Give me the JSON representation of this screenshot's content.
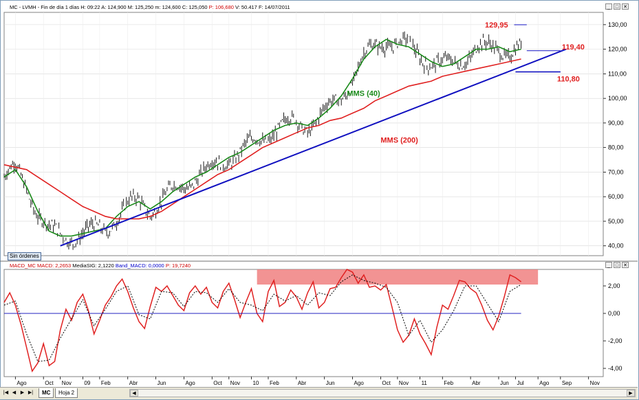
{
  "price_panel": {
    "title_parts": [
      {
        "text": "MC - LVMH - Fin de día 1 días",
        "color": "#000000"
      },
      {
        "text": "H: 09:22",
        "color": "#000000"
      },
      {
        "text": "A: 124,900",
        "color": "#000000"
      },
      {
        "text": "M: 125,250",
        "color": "#000000"
      },
      {
        "text": "m: 124,600",
        "color": "#000000"
      },
      {
        "text": "C: 125,050",
        "color": "#000000"
      },
      {
        "text": "P: 106,680",
        "color": "#d00000"
      },
      {
        "text": "V: 50.417",
        "color": "#000000"
      },
      {
        "text": "F: 14/07/2011",
        "color": "#000000"
      }
    ],
    "status_badge": "Sin órdenes"
  },
  "macd_panel": {
    "title_parts": [
      {
        "text": "MACD_MC",
        "color": "#d00000"
      },
      {
        "text": "MACD: 2,2653",
        "color": "#d00000"
      },
      {
        "text": "MediaSIG: 2,1220",
        "color": "#000000"
      },
      {
        "text": "Band_MACD: 0,0000",
        "color": "#0000cc"
      },
      {
        "text": "P: 19,7240",
        "color": "#d00000"
      }
    ]
  },
  "window_controls": {
    "minimize": "_",
    "maximize": "□",
    "close": "✕"
  },
  "tabs": [
    {
      "label": "MC",
      "active": true
    },
    {
      "label": "Hoja 2",
      "active": false
    }
  ],
  "nav_icons": [
    "first-icon",
    "prev-icon",
    "next-icon",
    "last-icon"
  ],
  "chart_data": [
    {
      "type": "line",
      "y_ticks": [
        "130,00",
        "120,00",
        "110,00",
        "100,00",
        "90,00",
        "80,00",
        "70,00",
        "60,00",
        "50,00",
        "40,00"
      ],
      "y_tick_values": [
        130,
        120,
        110,
        100,
        90,
        80,
        70,
        60,
        50,
        40
      ],
      "ylim": [
        36,
        135
      ],
      "x_ticks": [
        "Ago",
        "Oct",
        "Nov",
        "09",
        "Feb",
        "Abr",
        "Jun",
        "Ago",
        "Oct",
        "Nov",
        "10",
        "Feb",
        "Abr",
        "Jun",
        "Ago",
        "Oct",
        "Nov",
        "11",
        "Feb",
        "Abr",
        "Jun",
        "Jul",
        "Ago",
        "Sep",
        "Nov"
      ],
      "x_index_range": [
        0,
        100
      ],
      "x_tick_index": [
        2,
        7,
        10,
        14,
        17,
        22,
        27,
        32,
        37,
        40,
        44,
        47,
        52,
        57,
        62,
        67,
        70,
        74,
        78,
        83,
        88,
        91,
        95,
        99,
        104
      ],
      "grid": true,
      "series": [
        {
          "name": "MMS (40)",
          "color": "#1a8a1a",
          "x": [
            0,
            2,
            4,
            6,
            8,
            10,
            12,
            14,
            16,
            18,
            20,
            22,
            24,
            26,
            28,
            30,
            32,
            34,
            36,
            38,
            40,
            42,
            44,
            46,
            48,
            50,
            52,
            54,
            56,
            58,
            60,
            62,
            64,
            66,
            68,
            70,
            72,
            74,
            76,
            78,
            80,
            82,
            84,
            86,
            88,
            90,
            92
          ],
          "values": [
            68,
            71,
            64,
            54,
            46,
            44,
            44,
            45,
            46,
            47,
            52,
            56,
            58,
            55,
            58,
            62,
            65,
            68,
            70,
            73,
            76,
            78,
            81,
            84,
            87,
            89,
            90,
            89,
            92,
            96,
            101,
            108,
            116,
            121,
            124,
            122,
            121,
            118,
            115,
            113,
            114,
            117,
            120,
            120,
            121,
            119,
            120
          ]
        },
        {
          "name": "MMS (200)",
          "color": "#e02020",
          "x": [
            0,
            2,
            4,
            6,
            8,
            10,
            12,
            14,
            16,
            18,
            20,
            22,
            24,
            26,
            28,
            30,
            32,
            34,
            36,
            38,
            40,
            42,
            44,
            46,
            48,
            50,
            52,
            54,
            56,
            58,
            60,
            62,
            64,
            66,
            68,
            70,
            72,
            74,
            76,
            78,
            80,
            82,
            84,
            86,
            88,
            90,
            92
          ],
          "values": [
            73,
            72,
            71,
            68,
            65,
            62,
            59,
            56,
            54,
            52,
            51,
            51,
            51,
            52,
            54,
            57,
            60,
            63,
            66,
            69,
            71,
            74,
            77,
            80,
            82,
            84,
            86,
            88,
            89,
            91,
            92,
            94,
            96,
            99,
            101,
            103,
            105,
            106,
            107,
            109,
            110,
            111,
            112,
            113,
            114,
            115,
            116
          ]
        },
        {
          "name": "",
          "color": "#1010c0",
          "x": [
            10,
            100
          ],
          "values": [
            40,
            120
          ]
        }
      ],
      "annotations": [
        {
          "text": "129,95",
          "color": "#e02020"
        },
        {
          "text": "119,40",
          "color": "#e02020"
        },
        {
          "text": "110,80",
          "color": "#e02020"
        },
        {
          "text": "MMS (40)",
          "color": "#1a8a1a"
        },
        {
          "text": "MMS (200)",
          "color": "#e02020"
        }
      ],
      "levels": [
        129.95,
        119.4,
        110.8
      ]
    },
    {
      "type": "line",
      "y_ticks": [
        "2,00",
        "0,00",
        "-2,00",
        "-4,00"
      ],
      "y_tick_values": [
        2,
        0,
        -2,
        -4
      ],
      "ylim": [
        -4.6,
        3.2
      ],
      "grid": false,
      "zero_line_color": "#2020c0",
      "highlight_band": {
        "x": [
          45,
          95
        ],
        "y": [
          2.1,
          3.2
        ],
        "color": "#f08080"
      },
      "series": [
        {
          "name": "MACD",
          "color": "#e02020",
          "x": [
            0,
            1,
            2,
            3,
            4,
            5,
            6,
            7,
            8,
            9,
            10,
            11,
            12,
            13,
            14,
            15,
            16,
            17,
            18,
            19,
            20,
            21,
            22,
            23,
            24,
            25,
            26,
            27,
            28,
            29,
            30,
            31,
            32,
            33,
            34,
            35,
            36,
            37,
            38,
            39,
            40,
            41,
            42,
            43,
            44,
            45,
            46,
            47,
            48,
            49,
            50,
            51,
            52,
            53,
            54,
            55,
            56,
            57,
            58,
            59,
            60,
            61,
            62,
            63,
            64,
            65,
            66,
            67,
            68,
            69,
            70,
            71,
            72,
            73,
            74,
            75,
            76,
            77,
            78,
            79,
            80,
            81,
            82,
            83,
            84,
            85,
            86,
            87,
            88,
            89,
            90,
            91,
            92
          ],
          "values": [
            0.8,
            1.5,
            0.6,
            -0.8,
            -2.5,
            -4.2,
            -3.6,
            -2.2,
            -3.8,
            -3.5,
            -1.2,
            0.3,
            -0.5,
            0.8,
            1.4,
            0.2,
            -1.5,
            -0.5,
            0.6,
            1.2,
            2.0,
            2.5,
            1.6,
            0.4,
            -0.6,
            -1.1,
            0.5,
            1.9,
            1.6,
            2.0,
            1.3,
            0.6,
            0.2,
            1.5,
            2.0,
            1.4,
            1.9,
            0.8,
            0.4,
            1.6,
            2.2,
            1.0,
            -0.3,
            0.8,
            1.8,
            0.0,
            -0.6,
            1.6,
            2.4,
            0.5,
            0.8,
            1.7,
            1.2,
            0.3,
            1.5,
            2.3,
            0.4,
            0.8,
            1.8,
            1.9,
            2.6,
            3.2,
            3.0,
            2.2,
            2.8,
            1.9,
            2.0,
            1.7,
            2.1,
            0.5,
            -1.2,
            -2.1,
            -1.6,
            -0.4,
            -1.5,
            -2.2,
            -3.0,
            -1.0,
            0.6,
            0.3,
            1.3,
            2.4,
            2.3,
            1.8,
            1.5,
            0.6,
            -0.5,
            -1.2,
            -0.2,
            1.2,
            2.8,
            2.6,
            2.3
          ]
        },
        {
          "name": "MediaSIG",
          "color": "#000000",
          "x": [
            0,
            2,
            4,
            6,
            8,
            10,
            12,
            14,
            16,
            18,
            20,
            22,
            24,
            26,
            28,
            30,
            32,
            34,
            36,
            38,
            40,
            42,
            44,
            46,
            48,
            50,
            52,
            54,
            56,
            58,
            60,
            62,
            64,
            66,
            68,
            70,
            72,
            74,
            76,
            78,
            80,
            82,
            84,
            86,
            88,
            90,
            92
          ],
          "values": [
            0.6,
            0.9,
            -1.5,
            -3.5,
            -3.4,
            -1.8,
            -0.4,
            1.0,
            -0.9,
            0.3,
            1.6,
            2.0,
            -0.1,
            -0.4,
            1.6,
            1.5,
            0.5,
            1.6,
            1.5,
            0.8,
            1.8,
            0.8,
            0.6,
            0.2,
            1.4,
            0.9,
            1.3,
            0.6,
            1.5,
            1.3,
            2.3,
            2.8,
            2.4,
            2.2,
            1.9,
            0.8,
            -1.6,
            -0.5,
            -2.1,
            -1.2,
            0.2,
            2.0,
            2.0,
            0.7,
            -0.6,
            1.6,
            2.1
          ]
        },
        {
          "name": "Band_MACD",
          "color": "#2020c0",
          "x": [
            0,
            92
          ],
          "values": [
            0,
            0
          ]
        }
      ]
    }
  ]
}
